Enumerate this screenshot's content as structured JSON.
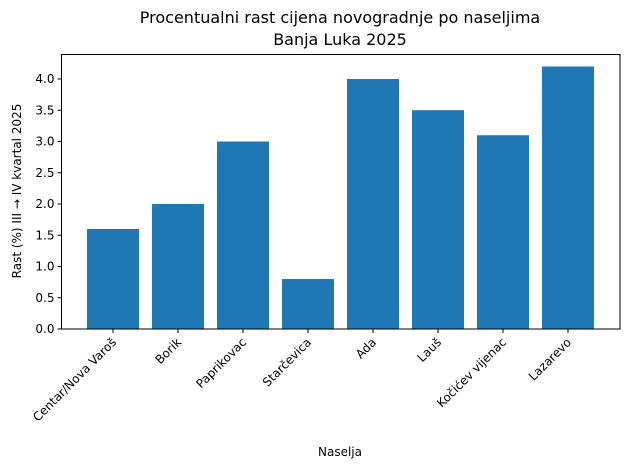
{
  "chart_data": {
    "type": "bar",
    "title": "Procentualni rast cijena novogradnje po naseljima",
    "subtitle": "Banja Luka 2025",
    "xlabel": "Naselja",
    "ylabel": "Rast (%) III → IV kvartal 2025",
    "categories": [
      "Centar/Nova Varoš",
      "Borik",
      "Paprikovac",
      "Starčevica",
      "Ada",
      "Lauš",
      "Kočićev vijenac",
      "Lazarevo"
    ],
    "values": [
      1.6,
      2.0,
      3.0,
      0.8,
      4.0,
      3.5,
      3.1,
      4.2
    ],
    "ylim": [
      0,
      4.41
    ],
    "yticks": [
      "0.0",
      "0.5",
      "1.0",
      "1.5",
      "2.0",
      "2.5",
      "3.0",
      "3.5",
      "4.0"
    ],
    "grid": false,
    "legend": null,
    "bar_color": "#1f77b4"
  }
}
